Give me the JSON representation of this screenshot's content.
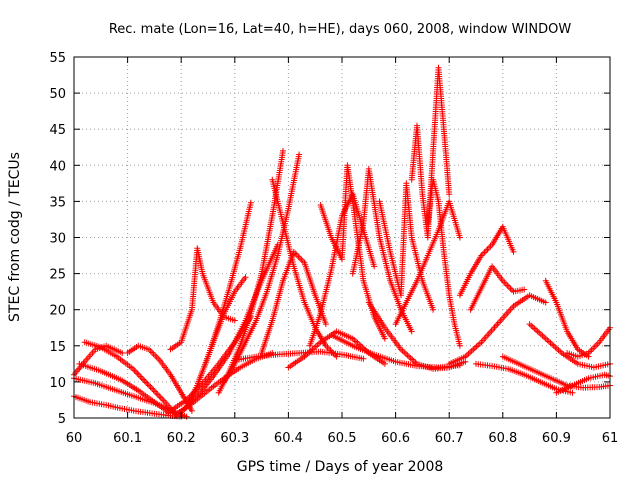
{
  "chart_data": {
    "type": "scatter",
    "title": "Rec. mate (Lon=16, Lat=40, h=HE), days 060, 2008, window WINDOW",
    "xlabel": "GPS time / Days of year 2008",
    "ylabel": "STEC from codg / TECUs",
    "xlim": [
      60,
      61
    ],
    "ylim": [
      5,
      55
    ],
    "xticks": [
      60,
      60.1,
      60.2,
      60.3,
      60.4,
      60.5,
      60.6,
      60.7,
      60.8,
      60.9,
      61
    ],
    "xtick_labels": [
      "60",
      "60.1",
      "60.2",
      "60.3",
      "60.4",
      "60.5",
      "60.6",
      "60.7",
      "60.8",
      "60.9",
      "61"
    ],
    "yticks": [
      5,
      10,
      15,
      20,
      25,
      30,
      35,
      40,
      45,
      50,
      55
    ],
    "ytick_labels": [
      "5",
      "10",
      "15",
      "20",
      "25",
      "30",
      "35",
      "40",
      "45",
      "50",
      "55"
    ],
    "grid": true,
    "marker": "plus",
    "color": "#ff0000",
    "series": [
      {
        "x": [
          60.0,
          60.03,
          60.06,
          60.09,
          60.12,
          60.15,
          60.18,
          60.2
        ],
        "y": [
          8.0,
          7.2,
          6.8,
          6.3,
          5.9,
          5.6,
          5.3,
          5.2
        ]
      },
      {
        "x": [
          60.0,
          60.04,
          60.08,
          60.12,
          60.16,
          60.19,
          60.21
        ],
        "y": [
          10.5,
          9.8,
          8.8,
          7.8,
          6.8,
          5.8,
          5.2
        ]
      },
      {
        "x": [
          60.01,
          60.05,
          60.09,
          60.12,
          60.15,
          60.18
        ],
        "y": [
          12.5,
          11.5,
          10.2,
          8.8,
          7.2,
          5.6
        ]
      },
      {
        "x": [
          60.02,
          60.05,
          60.08,
          60.11,
          60.14,
          60.17,
          60.19
        ],
        "y": [
          15.5,
          14.8,
          13.5,
          11.8,
          9.5,
          7.2,
          5.5
        ]
      },
      {
        "x": [
          60.0,
          60.02,
          60.04,
          60.06,
          60.09
        ],
        "y": [
          11.0,
          12.8,
          14.5,
          15.0,
          14.0
        ]
      },
      {
        "x": [
          60.1,
          60.12,
          60.14,
          60.16,
          60.18,
          60.2,
          60.22
        ],
        "y": [
          14.0,
          15.0,
          14.5,
          13.0,
          11.0,
          8.5,
          6.0
        ]
      },
      {
        "x": [
          60.19,
          60.22,
          60.25,
          60.28,
          60.31,
          60.34,
          60.37
        ],
        "y": [
          5.5,
          7.0,
          8.8,
          10.5,
          12.0,
          13.2,
          14.0
        ]
      },
      {
        "x": [
          60.18,
          60.21,
          60.24,
          60.27,
          60.3,
          60.33
        ],
        "y": [
          6.0,
          7.5,
          9.8,
          12.5,
          15.5,
          19.0
        ]
      },
      {
        "x": [
          60.2,
          60.23,
          60.26,
          60.29,
          60.32,
          60.35,
          60.38
        ],
        "y": [
          5.8,
          8.0,
          10.8,
          14.0,
          18.5,
          24.0,
          29.0
        ]
      },
      {
        "x": [
          60.21,
          60.23,
          60.25,
          60.27,
          60.29,
          60.31,
          60.33
        ],
        "y": [
          6.5,
          9.5,
          13.5,
          18.0,
          23.0,
          28.5,
          34.8
        ]
      },
      {
        "x": [
          60.22,
          60.24,
          60.26,
          60.28,
          60.3,
          60.32
        ],
        "y": [
          7.5,
          11.5,
          15.5,
          19.5,
          22.5,
          24.5
        ]
      },
      {
        "x": [
          60.18,
          60.2,
          60.22,
          60.23,
          60.24,
          60.26,
          60.28,
          60.3
        ],
        "y": [
          14.5,
          15.5,
          20.0,
          28.5,
          25.0,
          21.0,
          19.0,
          18.5
        ]
      },
      {
        "x": [
          60.27,
          60.29,
          60.31,
          60.33,
          60.35,
          60.37,
          60.39
        ],
        "y": [
          8.5,
          11.5,
          15.0,
          19.5,
          25.0,
          33.0,
          42.0
        ]
      },
      {
        "x": [
          60.28,
          60.3,
          60.32,
          60.34,
          60.36,
          60.38,
          60.4,
          60.42
        ],
        "y": [
          10.0,
          12.5,
          15.5,
          18.5,
          22.5,
          27.5,
          34.0,
          41.5
        ]
      },
      {
        "x": [
          60.37,
          60.38,
          60.39,
          60.41,
          60.43,
          60.45,
          60.47,
          60.49
        ],
        "y": [
          38.0,
          35.0,
          32.0,
          26.0,
          21.0,
          17.5,
          15.0,
          13.5
        ]
      },
      {
        "x": [
          60.35,
          60.37,
          60.39,
          60.41,
          60.43,
          60.45,
          60.47
        ],
        "y": [
          14.0,
          18.5,
          24.0,
          28.0,
          26.5,
          22.0,
          18.0
        ]
      },
      {
        "x": [
          60.3,
          60.34,
          60.38,
          60.42,
          60.46,
          60.5,
          60.54
        ],
        "y": [
          13.0,
          13.5,
          13.8,
          14.0,
          14.2,
          13.8,
          13.2
        ]
      },
      {
        "x": [
          60.4,
          60.43,
          60.46,
          60.49,
          60.52,
          60.55,
          60.58
        ],
        "y": [
          12.0,
          13.5,
          15.5,
          17.0,
          16.0,
          14.0,
          12.5
        ]
      },
      {
        "x": [
          60.46,
          60.48,
          60.5,
          60.51,
          60.52,
          60.54,
          60.56,
          60.58
        ],
        "y": [
          34.5,
          30.0,
          27.0,
          40.0,
          35.0,
          24.0,
          19.0,
          16.0
        ]
      },
      {
        "x": [
          60.44,
          60.46,
          60.48,
          60.5,
          60.52,
          60.54,
          60.56
        ],
        "y": [
          15.0,
          19.5,
          25.5,
          33.0,
          36.0,
          31.0,
          26.0
        ]
      },
      {
        "x": [
          60.52,
          60.54,
          60.55,
          60.57,
          60.59,
          60.61,
          60.63
        ],
        "y": [
          25.0,
          32.0,
          39.5,
          30.0,
          24.0,
          20.0,
          17.0
        ]
      },
      {
        "x": [
          60.48,
          60.52,
          60.56,
          60.6,
          60.64,
          60.68,
          60.72
        ],
        "y": [
          16.5,
          15.0,
          13.8,
          12.8,
          12.2,
          12.0,
          12.3
        ]
      },
      {
        "x": [
          60.55,
          60.58,
          60.61,
          60.64,
          60.67,
          60.7,
          60.73
        ],
        "y": [
          21.0,
          17.5,
          14.5,
          12.5,
          11.8,
          12.0,
          12.8
        ]
      },
      {
        "x": [
          60.57,
          60.59,
          60.61,
          60.62,
          60.63,
          60.65,
          60.67
        ],
        "y": [
          35.0,
          28.0,
          22.0,
          37.5,
          30.0,
          24.0,
          20.0
        ]
      },
      {
        "x": [
          60.63,
          60.64,
          60.65,
          60.66,
          60.67,
          60.68,
          60.69,
          60.7
        ],
        "y": [
          38.0,
          45.5,
          36.0,
          30.0,
          42.0,
          53.5,
          45.0,
          36.0
        ]
      },
      {
        "x": [
          60.66,
          60.67,
          60.68,
          60.69,
          60.7,
          60.71,
          60.72
        ],
        "y": [
          32.0,
          38.0,
          35.0,
          28.0,
          22.0,
          18.0,
          15.0
        ]
      },
      {
        "x": [
          60.6,
          60.62,
          60.64,
          60.66,
          60.68,
          60.7,
          60.72
        ],
        "y": [
          18.0,
          21.0,
          24.0,
          27.5,
          31.0,
          35.0,
          30.0
        ]
      },
      {
        "x": [
          60.7,
          60.73,
          60.76,
          60.79,
          60.82,
          60.85,
          60.88
        ],
        "y": [
          12.5,
          13.5,
          15.5,
          18.0,
          20.5,
          22.0,
          21.0
        ]
      },
      {
        "x": [
          60.72,
          60.74,
          60.76,
          60.78,
          60.8,
          60.82
        ],
        "y": [
          22.0,
          25.0,
          27.5,
          29.0,
          31.5,
          28.0
        ]
      },
      {
        "x": [
          60.74,
          60.76,
          60.78,
          60.8,
          60.82,
          60.84
        ],
        "y": [
          20.0,
          23.0,
          26.0,
          24.0,
          22.5,
          22.8
        ]
      },
      {
        "x": [
          60.75,
          60.78,
          60.81,
          60.84,
          60.87,
          60.9,
          60.93
        ],
        "y": [
          12.5,
          12.2,
          11.8,
          11.0,
          10.0,
          9.0,
          8.5
        ]
      },
      {
        "x": [
          60.8,
          60.83,
          60.86,
          60.89,
          60.92,
          60.95,
          60.98,
          61.0
        ],
        "y": [
          13.5,
          12.5,
          11.5,
          10.5,
          9.5,
          9.2,
          9.3,
          9.5
        ]
      },
      {
        "x": [
          60.88,
          60.9,
          60.92,
          60.94,
          60.96
        ],
        "y": [
          24.0,
          21.0,
          17.0,
          14.5,
          13.5
        ]
      },
      {
        "x": [
          60.85,
          60.88,
          60.91,
          60.94,
          60.97,
          61.0
        ],
        "y": [
          18.0,
          16.0,
          14.0,
          12.5,
          12.0,
          12.5
        ]
      },
      {
        "x": [
          60.92,
          60.94,
          60.96,
          60.98,
          61.0
        ],
        "y": [
          14.0,
          13.5,
          14.0,
          15.5,
          17.5
        ]
      },
      {
        "x": [
          60.9,
          60.93,
          60.96,
          60.99,
          61.0
        ],
        "y": [
          8.5,
          9.5,
          10.5,
          11.0,
          10.8
        ]
      }
    ]
  }
}
